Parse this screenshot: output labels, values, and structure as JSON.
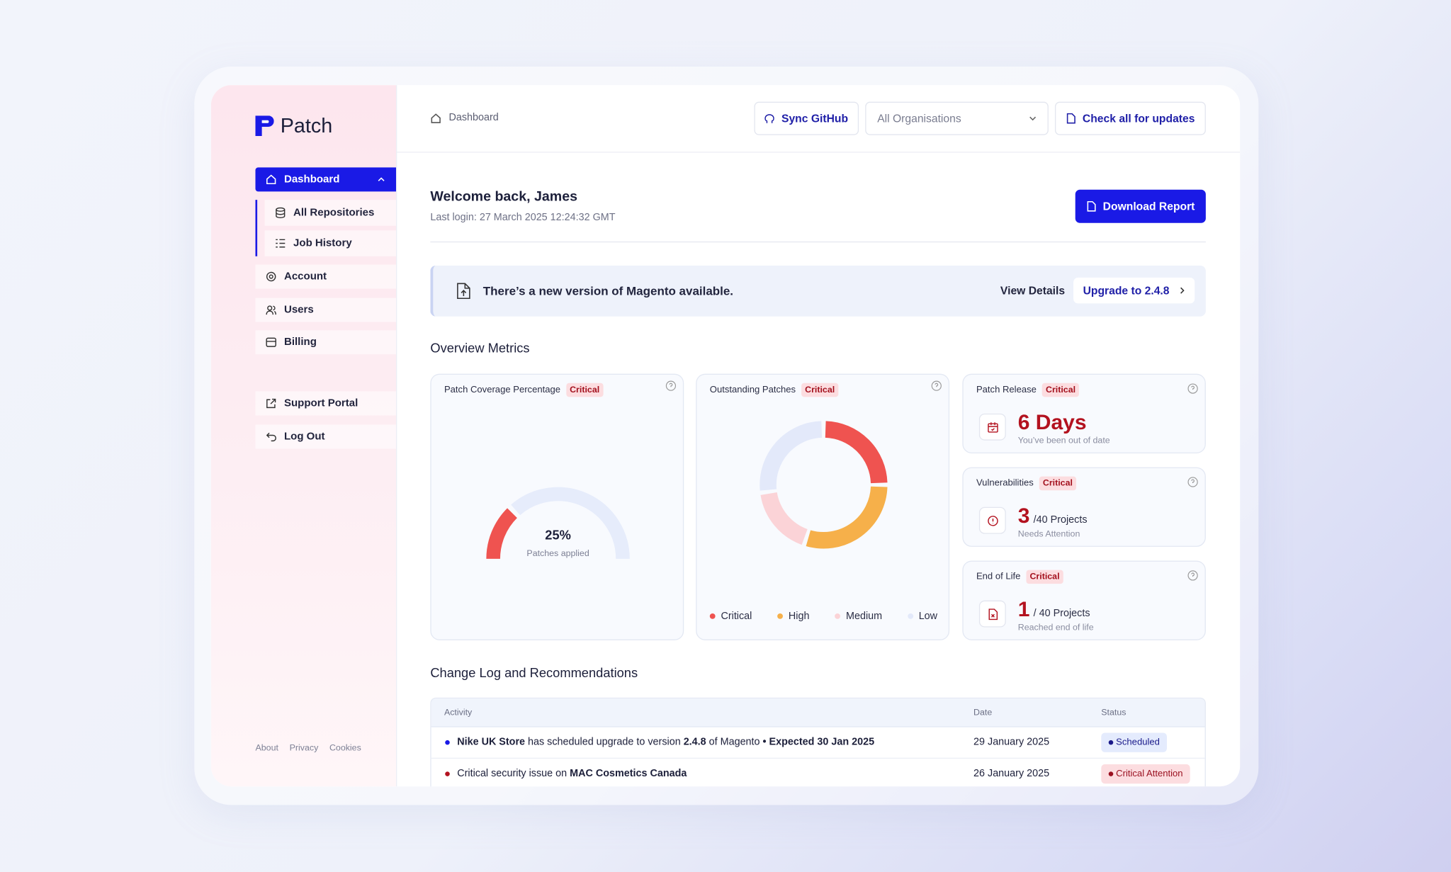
{
  "sidebar": {
    "brand": "Patch",
    "nav": [
      "Dashboard",
      "All Repositories",
      "Job History",
      "Account",
      "Users",
      "Billing",
      "Support Portal",
      "Log Out"
    ],
    "footer": [
      "About",
      "Privacy",
      "Cookies"
    ]
  },
  "topbar": {
    "breadcrumb": "Dashboard",
    "sync": "Sync GitHub",
    "organisation_select": "All Organisations",
    "check_updates": "Check all for updates"
  },
  "welcome": {
    "title": "Welcome back, James",
    "last_login": "Last login: 27 March 2025 12:24:32 GMT",
    "download": "Download Report"
  },
  "banner": {
    "message": "There’s a new version of Magento available.",
    "view_details": "View Details",
    "upgrade": "Upgrade to 2.4.8"
  },
  "overview_title": "Overview Metrics",
  "chart_data": [
    {
      "type": "gauge",
      "title": "Patch Coverage Percentage",
      "badge": "Critical",
      "value": 25,
      "value_label": "25%",
      "caption": "Patches applied",
      "range": [
        0,
        100
      ],
      "color": "#ef5350",
      "track_color": "#e6ecfb"
    },
    {
      "type": "donut",
      "title": "Outstanding Patches",
      "badge": "Critical",
      "categories": [
        "Critical",
        "High",
        "Medium",
        "Low"
      ],
      "values": [
        25,
        30,
        18,
        27
      ],
      "colors": [
        "#ef5350",
        "#f6b04a",
        "#fbd3d7",
        "#e3e9fa"
      ]
    }
  ],
  "stat_cards": [
    {
      "title": "Patch Release",
      "badge": "Critical",
      "value": "6 Days",
      "caption": "You’ve been out of date"
    },
    {
      "title": "Vulnerabilities",
      "badge": "Critical",
      "value": "3",
      "suffix": "/40 Projects",
      "caption": "Needs Attention"
    },
    {
      "title": "End of Life",
      "badge": "Critical",
      "value": "1",
      "suffix": "/ 40 Projects",
      "caption": "Reached end of life"
    }
  ],
  "changelog": {
    "title": "Change Log and Recommendations",
    "columns": [
      "Activity",
      "Date",
      "Status"
    ],
    "rows": [
      {
        "color": "#1a1ae6",
        "activity": [
          {
            "text": "Nike UK Store",
            "bold": true
          },
          {
            "text": " has scheduled upgrade to version ",
            "bold": false
          },
          {
            "text": "2.4.8",
            "bold": true
          },
          {
            "text": " of Magento ",
            "bold": false
          },
          {
            "text": "• Expected 30 Jan 2025",
            "bold": true
          }
        ],
        "date": "29 January 2025",
        "status": "Scheduled",
        "status_bg": "#e4ebfd",
        "status_color": "#1a1a8a"
      },
      {
        "color": "#b3121f",
        "activity": [
          {
            "text": "Critical security issue on ",
            "bold": false
          },
          {
            "text": "MAC Cosmetics Canada",
            "bold": true
          }
        ],
        "date": "26 January 2025",
        "status": "Critical Attention",
        "status_bg": "#fcdde0",
        "status_color": "#9a1020"
      }
    ]
  }
}
